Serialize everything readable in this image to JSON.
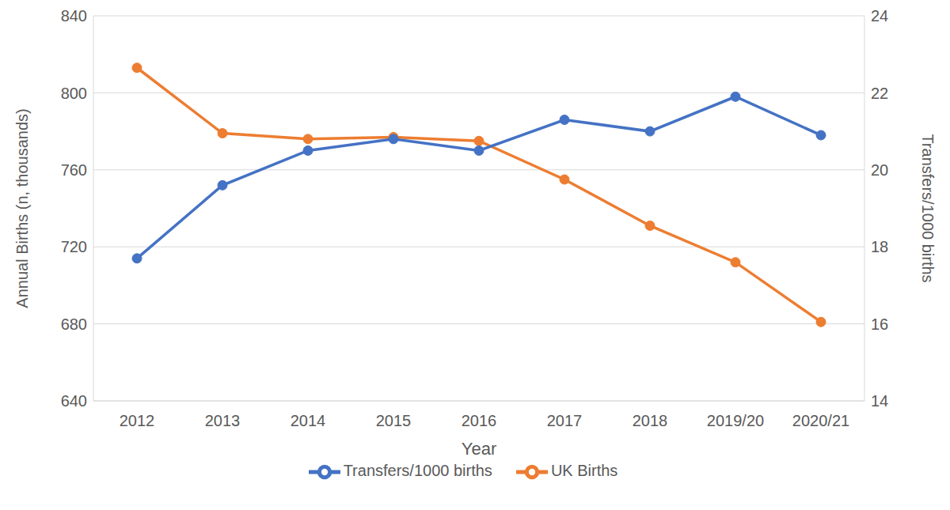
{
  "chart_data": {
    "type": "line",
    "categories": [
      "2012",
      "2013",
      "2014",
      "2015",
      "2016",
      "2017",
      "2018",
      "2019/20",
      "2020/21"
    ],
    "series": [
      {
        "name": "UK Births",
        "color": "#ED7D31",
        "marker": "circle",
        "values": [
          813,
          779,
          776,
          777,
          775,
          755,
          731,
          712,
          681
        ]
      },
      {
        "name": "Transfers/1000 births",
        "color": "#4472C4",
        "marker": "circle",
        "axis": "y2",
        "values": [
          17.7,
          19.6,
          20.5,
          20.8,
          20.5,
          21.3,
          21.0,
          21.9,
          20.9
        ]
      }
    ],
    "x_label": "Year",
    "y_label": "Annual Births (n, thousands)",
    "y2_label": "Transfers/1000 births",
    "ylim": [
      640,
      840
    ],
    "yticks": [
      640,
      680,
      720,
      760,
      800,
      840
    ],
    "y2lim": [
      14,
      24
    ],
    "y2ticks": [
      14,
      16,
      18,
      20,
      22,
      24
    ],
    "grid": true,
    "legend": "bottom"
  }
}
